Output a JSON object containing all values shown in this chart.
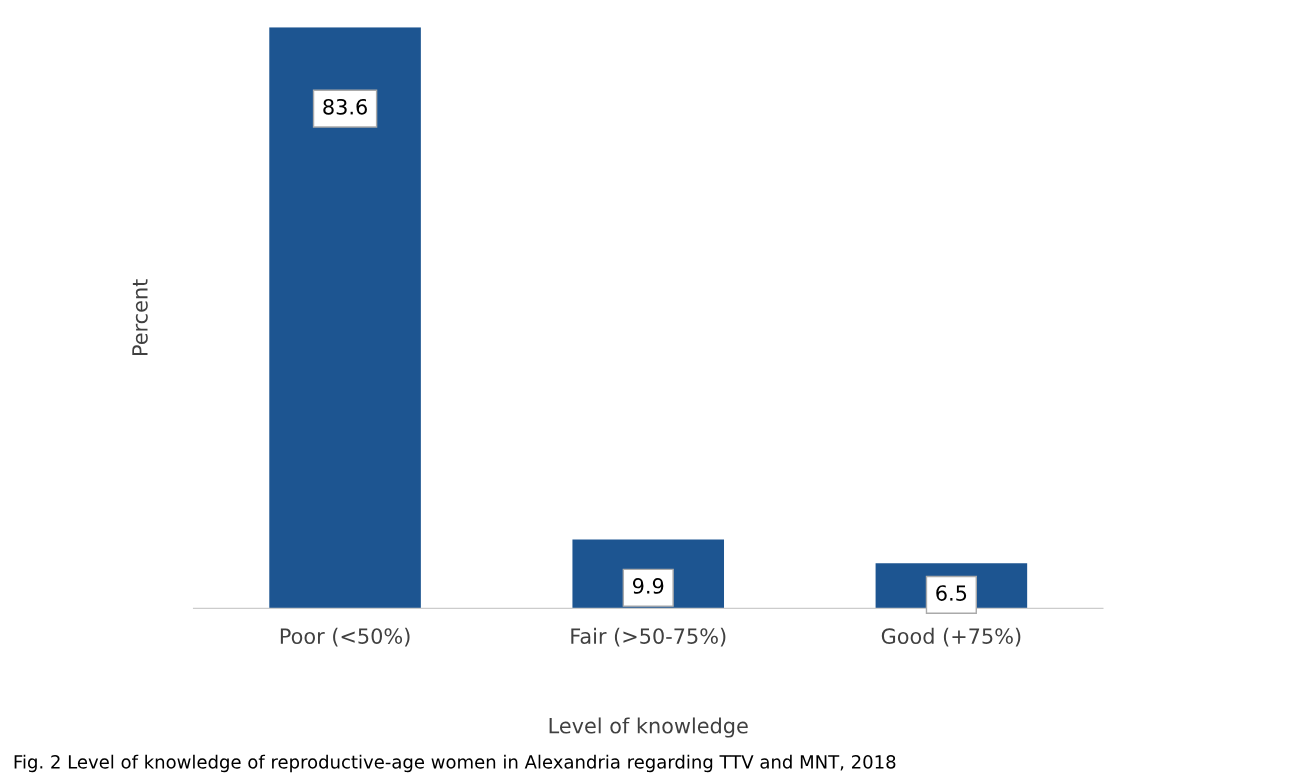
{
  "chart_data": {
    "type": "bar",
    "categories": [
      "Poor (<50%)",
      "Fair (>50-75%)",
      "Good (+75%)"
    ],
    "values": [
      83.6,
      9.9,
      6.5
    ],
    "color": "#1d5591",
    "xlabel": "Level of knowledge",
    "ylabel": "Percent",
    "data_labels": true,
    "grid": false,
    "annotations": [
      "Fig. 2 Level of knowledge of reproductive-age women in Alexandria regarding TTV and MNT, 2018"
    ]
  }
}
